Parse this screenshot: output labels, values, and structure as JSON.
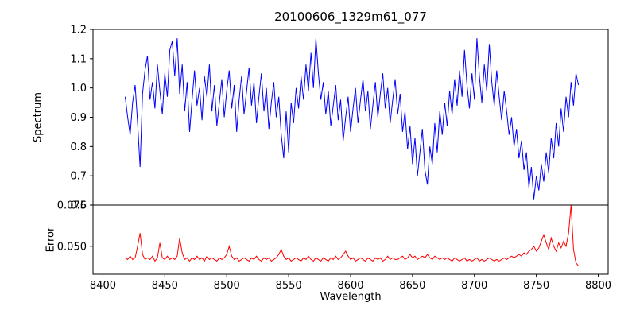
{
  "chart_data": {
    "type": "line",
    "title": "20100606_1329m61_077",
    "xlabel": "Wavelength",
    "xlim": [
      8392,
      8808
    ],
    "x_start": 8418,
    "x_step": 2,
    "x_ticks": [
      8400,
      8450,
      8500,
      8550,
      8600,
      8650,
      8700,
      8750,
      8800
    ],
    "x_tick_labels": [
      "8400",
      "8450",
      "8500",
      "8550",
      "8600",
      "8650",
      "8700",
      "8750",
      "8800"
    ],
    "grid": false,
    "legend": "none",
    "panels": [
      {
        "name": "spectrum",
        "ylabel": "Spectrum",
        "color": "#0000ff",
        "ylim": [
          0.6,
          1.2
        ],
        "y_ticks": [
          0.6,
          0.7,
          0.8,
          0.9,
          1.0,
          1.1,
          1.2
        ],
        "y_tick_labels": [
          "0.6",
          "0.7",
          "0.8",
          "0.9",
          "1.0",
          "1.1",
          "1.2"
        ],
        "values": [
          0.97,
          0.9,
          0.84,
          0.95,
          1.01,
          0.88,
          0.73,
          0.98,
          1.06,
          1.11,
          0.96,
          1.02,
          0.93,
          1.08,
          0.99,
          0.91,
          1.05,
          0.97,
          1.13,
          1.16,
          1.04,
          1.17,
          0.98,
          1.08,
          0.92,
          1.02,
          0.85,
          0.96,
          1.06,
          0.94,
          1.0,
          0.89,
          1.04,
          0.97,
          1.08,
          0.92,
          1.01,
          0.87,
          0.95,
          1.03,
          0.9,
          0.99,
          1.06,
          0.93,
          1.01,
          0.85,
          0.96,
          1.04,
          0.91,
          0.99,
          1.07,
          0.94,
          1.02,
          0.88,
          0.97,
          1.05,
          0.92,
          1.0,
          0.86,
          0.95,
          1.02,
          0.9,
          0.97,
          0.84,
          0.76,
          0.92,
          0.78,
          0.95,
          0.88,
          1.0,
          0.93,
          1.04,
          0.96,
          1.08,
          0.99,
          1.12,
          1.0,
          1.17,
          1.05,
          0.96,
          1.02,
          0.91,
          0.99,
          0.87,
          0.94,
          1.01,
          0.89,
          0.96,
          0.82,
          0.9,
          0.97,
          0.85,
          0.93,
          1.0,
          0.88,
          0.96,
          1.03,
          0.92,
          0.99,
          0.86,
          0.94,
          1.02,
          0.9,
          0.98,
          1.05,
          0.93,
          1.0,
          0.88,
          0.96,
          1.03,
          0.91,
          0.98,
          0.85,
          0.92,
          0.79,
          0.87,
          0.74,
          0.83,
          0.7,
          0.78,
          0.86,
          0.72,
          0.67,
          0.8,
          0.74,
          0.88,
          0.78,
          0.92,
          0.84,
          0.95,
          0.87,
          0.99,
          0.91,
          1.03,
          0.94,
          1.06,
          0.97,
          1.13,
          1.01,
          0.93,
          1.05,
          0.96,
          1.17,
          1.04,
          0.95,
          1.08,
          0.99,
          1.15,
          1.02,
          0.94,
          1.06,
          0.97,
          0.89,
          0.99,
          0.92,
          0.84,
          0.9,
          0.8,
          0.86,
          0.76,
          0.82,
          0.72,
          0.78,
          0.66,
          0.73,
          0.62,
          0.7,
          0.65,
          0.74,
          0.68,
          0.78,
          0.71,
          0.83,
          0.76,
          0.88,
          0.8,
          0.93,
          0.85,
          0.97,
          0.9,
          1.02,
          0.94,
          1.05,
          1.01
        ]
      },
      {
        "name": "error",
        "ylabel": "Error",
        "color": "#ff0000",
        "ylim": [
          0.033,
          0.075
        ],
        "y_ticks": [
          0.05,
          0.075
        ],
        "y_tick_labels": [
          "0.050",
          "0.075"
        ],
        "values": [
          0.043,
          0.042,
          0.044,
          0.042,
          0.043,
          0.05,
          0.058,
          0.045,
          0.042,
          0.043,
          0.042,
          0.044,
          0.041,
          0.043,
          0.052,
          0.043,
          0.042,
          0.044,
          0.042,
          0.043,
          0.042,
          0.044,
          0.055,
          0.046,
          0.042,
          0.043,
          0.041,
          0.043,
          0.042,
          0.044,
          0.042,
          0.043,
          0.041,
          0.044,
          0.042,
          0.043,
          0.042,
          0.041,
          0.043,
          0.042,
          0.043,
          0.045,
          0.05,
          0.044,
          0.042,
          0.043,
          0.041,
          0.042,
          0.043,
          0.042,
          0.041,
          0.043,
          0.042,
          0.044,
          0.042,
          0.041,
          0.043,
          0.042,
          0.043,
          0.041,
          0.042,
          0.043,
          0.045,
          0.048,
          0.044,
          0.042,
          0.043,
          0.041,
          0.042,
          0.043,
          0.042,
          0.041,
          0.043,
          0.042,
          0.044,
          0.042,
          0.041,
          0.043,
          0.042,
          0.041,
          0.043,
          0.042,
          0.041,
          0.043,
          0.042,
          0.044,
          0.042,
          0.043,
          0.045,
          0.047,
          0.044,
          0.042,
          0.043,
          0.041,
          0.042,
          0.043,
          0.042,
          0.041,
          0.043,
          0.042,
          0.041,
          0.043,
          0.042,
          0.043,
          0.041,
          0.042,
          0.044,
          0.042,
          0.043,
          0.042,
          0.042,
          0.043,
          0.044,
          0.042,
          0.043,
          0.045,
          0.043,
          0.044,
          0.042,
          0.043,
          0.044,
          0.043,
          0.045,
          0.043,
          0.042,
          0.044,
          0.043,
          0.042,
          0.043,
          0.042,
          0.043,
          0.042,
          0.041,
          0.043,
          0.042,
          0.041,
          0.042,
          0.043,
          0.041,
          0.042,
          0.041,
          0.042,
          0.043,
          0.041,
          0.042,
          0.041,
          0.042,
          0.043,
          0.042,
          0.041,
          0.042,
          0.041,
          0.042,
          0.043,
          0.042,
          0.043,
          0.044,
          0.043,
          0.044,
          0.045,
          0.044,
          0.046,
          0.045,
          0.047,
          0.048,
          0.05,
          0.047,
          0.049,
          0.053,
          0.057,
          0.052,
          0.048,
          0.055,
          0.05,
          0.047,
          0.052,
          0.049,
          0.053,
          0.05,
          0.058,
          0.075,
          0.048,
          0.04,
          0.038
        ]
      }
    ]
  }
}
